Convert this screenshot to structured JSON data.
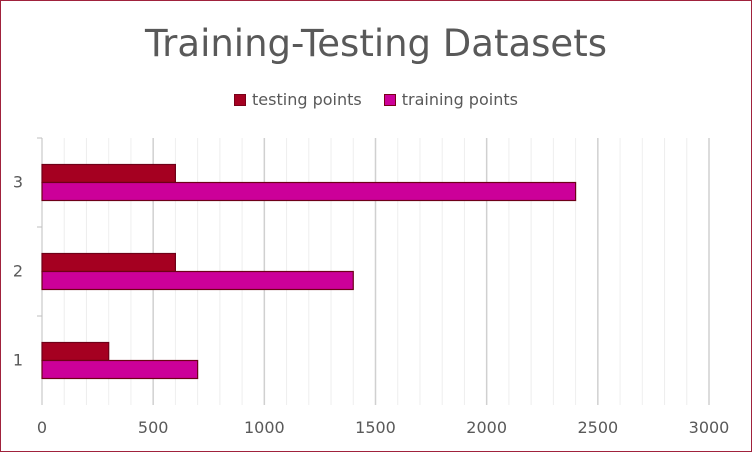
{
  "chart_data": {
    "type": "bar",
    "orientation": "horizontal",
    "title": "Training-Testing Datasets",
    "categories": [
      "1",
      "2",
      "3"
    ],
    "series": [
      {
        "name": "testing points",
        "values": [
          300,
          600,
          600
        ],
        "color": "#a50021"
      },
      {
        "name": "training points",
        "values": [
          700,
          1400,
          2400
        ],
        "color": "#cc0099"
      }
    ],
    "xlim": [
      0,
      3000
    ],
    "xticks": [
      0,
      500,
      1000,
      1500,
      2000,
      2500,
      3000
    ],
    "minor_step": 100,
    "grid": true,
    "legend_position": "top"
  }
}
